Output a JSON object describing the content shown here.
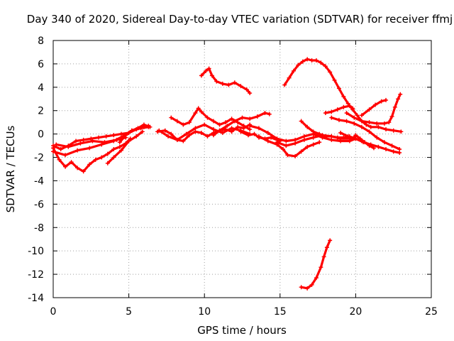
{
  "chart_data": {
    "type": "scatter",
    "title": "Day 340 of 2020, Sidereal Day-to-day VTEC variation (SDTVAR) for receiver ffmj",
    "xlabel": "GPS time / hours",
    "ylabel": "SDTVAR / TECUs",
    "xlim": [
      0,
      25
    ],
    "ylim": [
      -14,
      8
    ],
    "xticks": [
      0,
      5,
      10,
      15,
      20,
      25
    ],
    "yticks": [
      -14,
      -12,
      -10,
      -8,
      -6,
      -4,
      -2,
      0,
      2,
      4,
      6,
      8
    ],
    "grid": true,
    "color": "#ff0000",
    "series": [
      {
        "name": "trace-1",
        "points": [
          [
            0,
            -1.2
          ],
          [
            0.4,
            -2.2
          ],
          [
            0.8,
            -2.8
          ],
          [
            1.2,
            -2.4
          ],
          [
            1.6,
            -2.9
          ],
          [
            2.0,
            -3.2
          ],
          [
            2.4,
            -2.6
          ],
          [
            2.8,
            -2.2
          ],
          [
            3.2,
            -2.0
          ],
          [
            3.6,
            -1.7
          ],
          [
            4.0,
            -1.3
          ],
          [
            4.4,
            -1.1
          ],
          [
            4.8,
            -0.8
          ],
          [
            5.1,
            -0.4
          ]
        ]
      },
      {
        "name": "trace-2",
        "points": [
          [
            0,
            -1.0
          ],
          [
            0.5,
            -1.3
          ],
          [
            1.0,
            -1.0
          ],
          [
            1.5,
            -0.6
          ],
          [
            2.0,
            -0.5
          ],
          [
            2.5,
            -0.4
          ],
          [
            3.0,
            -0.3
          ],
          [
            3.5,
            -0.2
          ],
          [
            4.0,
            -0.1
          ],
          [
            4.5,
            0.0
          ],
          [
            5.0,
            0.1
          ],
          [
            5.5,
            0.4
          ],
          [
            6.0,
            0.6
          ],
          [
            6.3,
            0.7
          ]
        ]
      },
      {
        "name": "trace-3",
        "points": [
          [
            0,
            -1.5
          ],
          [
            0.8,
            -1.8
          ],
          [
            1.6,
            -1.4
          ],
          [
            2.4,
            -1.2
          ],
          [
            3.2,
            -0.9
          ],
          [
            4.0,
            -0.6
          ],
          [
            4.6,
            -0.2
          ],
          [
            5.2,
            0.3
          ],
          [
            5.8,
            0.5
          ],
          [
            6.3,
            0.6
          ]
        ]
      },
      {
        "name": "trace-4",
        "points": [
          [
            0.2,
            -0.9
          ],
          [
            1.0,
            -1.1
          ],
          [
            1.8,
            -0.8
          ],
          [
            2.6,
            -0.6
          ],
          [
            3.4,
            -0.7
          ],
          [
            4.2,
            -0.5
          ],
          [
            4.8,
            -0.3
          ]
        ]
      },
      {
        "name": "trace-5",
        "points": [
          [
            3.6,
            -2.5
          ],
          [
            4.0,
            -2.0
          ],
          [
            4.5,
            -1.4
          ],
          [
            5.0,
            -0.6
          ],
          [
            5.5,
            -0.2
          ],
          [
            5.9,
            0.2
          ]
        ]
      },
      {
        "name": "trace-6",
        "points": [
          [
            4.4,
            -0.7
          ],
          [
            4.8,
            -0.1
          ],
          [
            5.2,
            0.3
          ],
          [
            5.6,
            0.5
          ],
          [
            6.0,
            0.8
          ],
          [
            6.4,
            0.6
          ]
        ]
      },
      {
        "name": "trace-7",
        "points": [
          [
            6.9,
            0.2
          ],
          [
            7.4,
            0.3
          ],
          [
            7.8,
            0.0
          ],
          [
            8.2,
            -0.5
          ],
          [
            8.6,
            -0.6
          ],
          [
            9.0,
            -0.1
          ],
          [
            9.4,
            0.2
          ],
          [
            9.8,
            0.1
          ],
          [
            10.2,
            -0.2
          ],
          [
            10.6,
            0.1
          ],
          [
            11.0,
            0.3
          ],
          [
            11.4,
            0.4
          ],
          [
            11.8,
            0.2
          ],
          [
            12.2,
            0.6
          ],
          [
            12.6,
            0.5
          ],
          [
            13.0,
            0.8
          ]
        ]
      },
      {
        "name": "trace-8",
        "points": [
          [
            7.8,
            1.4
          ],
          [
            8.2,
            1.1
          ],
          [
            8.6,
            0.8
          ],
          [
            9.0,
            1.0
          ],
          [
            9.4,
            1.8
          ],
          [
            9.6,
            2.2
          ],
          [
            9.8,
            1.9
          ],
          [
            10.2,
            1.4
          ],
          [
            10.6,
            1.1
          ],
          [
            11.0,
            0.8
          ],
          [
            11.4,
            1.0
          ],
          [
            11.8,
            1.3
          ],
          [
            12.2,
            1.0
          ],
          [
            12.6,
            0.7
          ],
          [
            13.0,
            0.4
          ]
        ]
      },
      {
        "name": "trace-9",
        "points": [
          [
            7.0,
            0.3
          ],
          [
            7.6,
            -0.2
          ],
          [
            8.2,
            -0.5
          ],
          [
            8.8,
            0.0
          ],
          [
            9.4,
            0.5
          ],
          [
            10.0,
            0.8
          ],
          [
            10.6,
            0.4
          ],
          [
            11.2,
            0.1
          ],
          [
            11.8,
            0.5
          ],
          [
            12.4,
            0.3
          ],
          [
            13.0,
            0.0
          ]
        ]
      },
      {
        "name": "trace-10",
        "points": [
          [
            9.8,
            5.0
          ],
          [
            10.1,
            5.4
          ],
          [
            10.3,
            5.6
          ],
          [
            10.5,
            5.0
          ],
          [
            10.8,
            4.5
          ],
          [
            11.2,
            4.3
          ],
          [
            11.6,
            4.2
          ],
          [
            12.0,
            4.4
          ],
          [
            12.4,
            4.1
          ],
          [
            12.8,
            3.8
          ],
          [
            13.0,
            3.5
          ]
        ]
      },
      {
        "name": "trace-11",
        "points": [
          [
            10.6,
            -0.1
          ],
          [
            11.0,
            0.3
          ],
          [
            11.5,
            0.7
          ],
          [
            12.0,
            1.1
          ],
          [
            12.5,
            1.4
          ],
          [
            13.0,
            1.3
          ],
          [
            13.5,
            1.5
          ],
          [
            14.0,
            1.8
          ],
          [
            14.3,
            1.7
          ]
        ]
      },
      {
        "name": "trace-12",
        "points": [
          [
            12.4,
            0.2
          ],
          [
            12.9,
            -0.1
          ],
          [
            13.3,
            0.0
          ],
          [
            13.6,
            -0.3
          ],
          [
            14.0,
            -0.4
          ],
          [
            14.4,
            -0.3
          ],
          [
            14.8,
            -0.5
          ],
          [
            15.0,
            -0.6
          ]
        ]
      },
      {
        "name": "trace-13",
        "points": [
          [
            13.0,
            0.7
          ],
          [
            13.6,
            0.5
          ],
          [
            14.2,
            0.1
          ],
          [
            14.8,
            -0.4
          ],
          [
            15.4,
            -0.6
          ],
          [
            16.0,
            -0.5
          ],
          [
            16.6,
            -0.2
          ],
          [
            17.2,
            0.0
          ],
          [
            17.8,
            -0.3
          ],
          [
            18.4,
            -0.5
          ],
          [
            19.0,
            -0.6
          ],
          [
            19.6,
            -0.6
          ],
          [
            20.0,
            -0.4
          ],
          [
            20.4,
            -0.6
          ]
        ]
      },
      {
        "name": "trace-14",
        "points": [
          [
            13.6,
            -0.2
          ],
          [
            14.2,
            -0.6
          ],
          [
            14.8,
            -0.9
          ],
          [
            15.2,
            -1.3
          ],
          [
            15.5,
            -1.8
          ],
          [
            16.0,
            -1.9
          ],
          [
            16.4,
            -1.5
          ],
          [
            16.8,
            -1.1
          ],
          [
            17.2,
            -0.9
          ],
          [
            17.6,
            -0.7
          ]
        ]
      },
      {
        "name": "trace-15",
        "points": [
          [
            14.8,
            -0.7
          ],
          [
            15.4,
            -1.0
          ],
          [
            16.0,
            -0.8
          ],
          [
            16.6,
            -0.5
          ],
          [
            17.2,
            -0.3
          ],
          [
            17.8,
            -0.1
          ],
          [
            18.4,
            -0.2
          ],
          [
            19.0,
            -0.4
          ],
          [
            19.6,
            -0.4
          ],
          [
            20.0,
            -0.2
          ]
        ]
      },
      {
        "name": "trace-16",
        "points": [
          [
            15.3,
            4.2
          ],
          [
            15.6,
            4.8
          ],
          [
            15.9,
            5.4
          ],
          [
            16.2,
            5.9
          ],
          [
            16.5,
            6.2
          ],
          [
            16.8,
            6.4
          ],
          [
            17.1,
            6.3
          ],
          [
            17.4,
            6.3
          ],
          [
            17.7,
            6.1
          ],
          [
            18.0,
            5.8
          ],
          [
            18.3,
            5.3
          ],
          [
            18.6,
            4.6
          ],
          [
            18.9,
            3.9
          ],
          [
            19.2,
            3.2
          ],
          [
            19.5,
            2.6
          ],
          [
            19.8,
            2.1
          ],
          [
            20.1,
            1.6
          ],
          [
            20.4,
            1.1
          ],
          [
            20.7,
            0.8
          ],
          [
            21.0,
            0.6
          ],
          [
            21.5,
            0.6
          ],
          [
            22.0,
            0.4
          ],
          [
            22.5,
            0.3
          ],
          [
            23.0,
            0.2
          ]
        ]
      },
      {
        "name": "trace-17",
        "points": [
          [
            16.4,
            -13.1
          ],
          [
            16.8,
            -13.2
          ],
          [
            17.1,
            -12.9
          ],
          [
            17.4,
            -12.3
          ],
          [
            17.7,
            -11.4
          ],
          [
            17.9,
            -10.5
          ],
          [
            18.1,
            -9.7
          ],
          [
            18.3,
            -9.1
          ]
        ]
      },
      {
        "name": "trace-18",
        "points": [
          [
            16.4,
            1.1
          ],
          [
            16.8,
            0.6
          ],
          [
            17.2,
            0.2
          ],
          [
            17.6,
            0.0
          ],
          [
            18.0,
            -0.2
          ],
          [
            18.4,
            -0.2
          ],
          [
            18.8,
            -0.3
          ],
          [
            19.2,
            -0.3
          ],
          [
            19.6,
            -0.2
          ]
        ]
      },
      {
        "name": "trace-19",
        "points": [
          [
            18.0,
            1.8
          ],
          [
            18.4,
            1.9
          ],
          [
            18.8,
            2.1
          ],
          [
            19.2,
            2.3
          ],
          [
            19.6,
            2.4
          ],
          [
            19.8,
            2.2
          ]
        ]
      },
      {
        "name": "trace-20",
        "points": [
          [
            18.4,
            1.4
          ],
          [
            18.9,
            1.2
          ],
          [
            19.4,
            1.1
          ],
          [
            19.9,
            0.9
          ],
          [
            20.4,
            0.6
          ],
          [
            20.9,
            0.2
          ],
          [
            21.4,
            -0.3
          ],
          [
            21.9,
            -0.7
          ],
          [
            22.4,
            -1.0
          ],
          [
            22.9,
            -1.3
          ]
        ]
      },
      {
        "name": "trace-21",
        "points": [
          [
            19.0,
            0.1
          ],
          [
            19.5,
            -0.2
          ],
          [
            20.0,
            -0.4
          ],
          [
            20.5,
            -0.7
          ],
          [
            21.0,
            -0.9
          ],
          [
            21.5,
            -1.1
          ],
          [
            22.0,
            -1.3
          ],
          [
            22.5,
            -1.5
          ],
          [
            22.9,
            -1.6
          ]
        ]
      },
      {
        "name": "trace-22",
        "points": [
          [
            19.4,
            1.8
          ],
          [
            19.9,
            1.4
          ],
          [
            20.4,
            1.1
          ],
          [
            20.9,
            1.0
          ],
          [
            21.4,
            0.9
          ],
          [
            21.9,
            0.9
          ],
          [
            22.2,
            1.0
          ],
          [
            22.4,
            1.5
          ],
          [
            22.6,
            2.3
          ],
          [
            22.8,
            3.0
          ],
          [
            22.95,
            3.4
          ]
        ]
      },
      {
        "name": "trace-23",
        "points": [
          [
            20.4,
            1.6
          ],
          [
            20.9,
            2.1
          ],
          [
            21.3,
            2.5
          ],
          [
            21.7,
            2.8
          ],
          [
            22.0,
            2.9
          ]
        ]
      },
      {
        "name": "trace-24",
        "points": [
          [
            20.0,
            -0.1
          ],
          [
            20.3,
            -0.4
          ],
          [
            20.6,
            -0.7
          ],
          [
            20.9,
            -1.0
          ],
          [
            21.2,
            -1.2
          ]
        ]
      }
    ]
  }
}
